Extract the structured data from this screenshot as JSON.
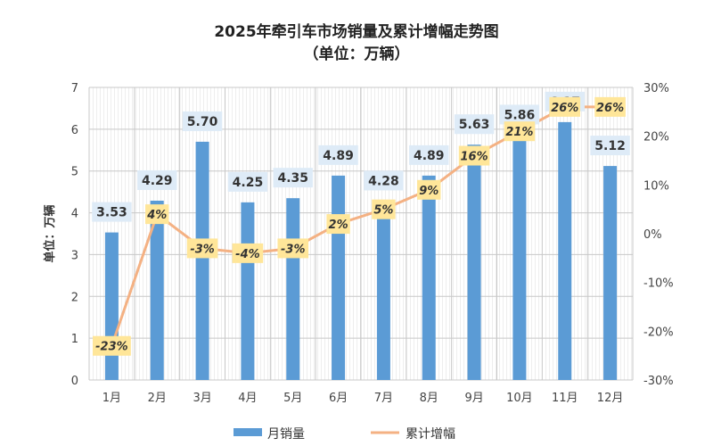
{
  "chart_data": {
    "type": "bar",
    "title": "2025年牵引车市场销量及累计增幅走势图",
    "subtitle": "（单位：万辆）",
    "ylabel": "单位：万辆",
    "categories": [
      "1月",
      "2月",
      "3月",
      "4月",
      "5月",
      "6月",
      "7月",
      "8月",
      "9月",
      "10月",
      "11月",
      "12月"
    ],
    "series": [
      {
        "name": "月销量",
        "type": "bar",
        "axis": "left",
        "color": "#5b9bd5",
        "values": [
          3.53,
          4.29,
          5.7,
          4.25,
          4.35,
          4.89,
          4.28,
          4.89,
          5.63,
          5.86,
          6.17,
          5.12
        ],
        "labels": [
          "3.53",
          "4.29",
          "5.70",
          "4.25",
          "4.35",
          "4.89",
          "4.28",
          "4.89",
          "5.63",
          "5.86",
          "6.17",
          "5.12"
        ]
      },
      {
        "name": "累计增幅",
        "type": "line",
        "axis": "right",
        "color": "#f4b183",
        "values": [
          -23,
          4,
          -3,
          -4,
          -3,
          2,
          5,
          9,
          16,
          21,
          26,
          26
        ],
        "labels": [
          "-23%",
          "4%",
          "-3%",
          "-4%",
          "-3%",
          "2%",
          "5%",
          "9%",
          "16%",
          "21%",
          "26%",
          "26%"
        ]
      }
    ],
    "ylim_left": [
      0,
      7
    ],
    "ylim_right": [
      -30,
      30
    ],
    "yticks_left": [
      "0",
      "1",
      "2",
      "3",
      "4",
      "5",
      "6",
      "7"
    ],
    "yticks_right": [
      "-30%",
      "-20%",
      "-10%",
      "0%",
      "10%",
      "20%",
      "30%"
    ],
    "grid": true,
    "legend_position": "bottom"
  }
}
